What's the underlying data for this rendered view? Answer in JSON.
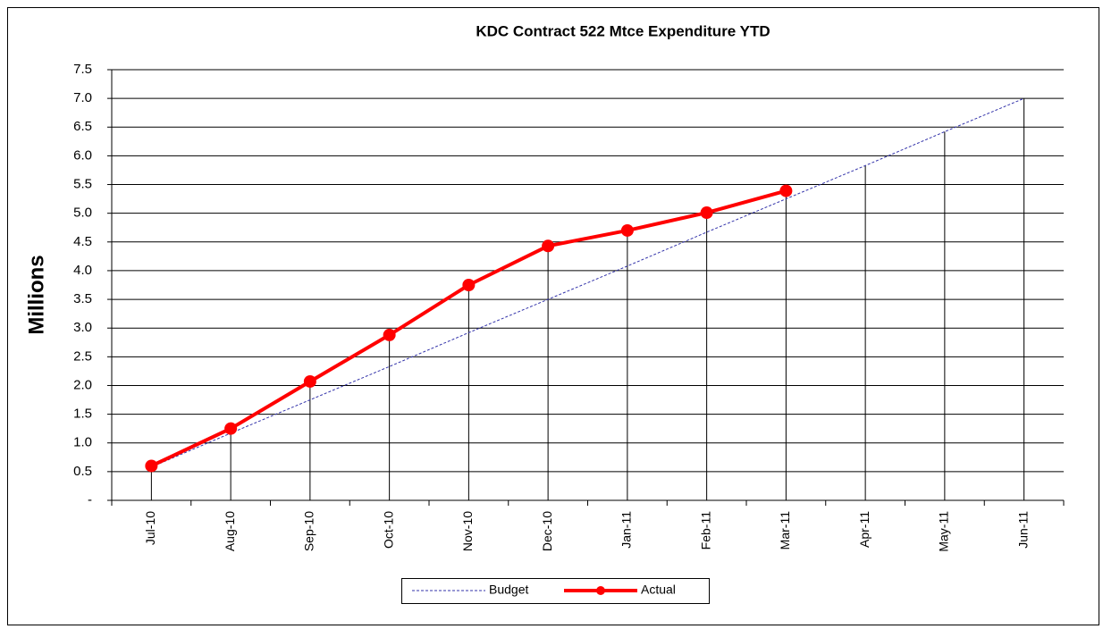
{
  "chart_data": {
    "type": "line",
    "title": "KDC Contract 522 Mtce Expenditure YTD",
    "y_label": "Millions",
    "categories": [
      "Jul-10",
      "Aug-10",
      "Sep-10",
      "Oct-10",
      "Nov-10",
      "Dec-10",
      "Jan-11",
      "Feb-11",
      "Mar-11",
      "Apr-11",
      "May-11",
      "Jun-11"
    ],
    "series": [
      {
        "name": "Budget",
        "color": "#3333aa",
        "dash": true,
        "marker": false,
        "values": [
          0.58,
          1.17,
          1.75,
          2.33,
          2.92,
          3.5,
          4.08,
          4.67,
          5.25,
          5.83,
          6.42,
          7.0
        ]
      },
      {
        "name": "Actual",
        "color": "#ff0000",
        "dash": false,
        "marker": true,
        "values": [
          0.6,
          1.25,
          2.07,
          2.88,
          3.75,
          4.43,
          4.7,
          5.01,
          5.39,
          null,
          null,
          null
        ]
      }
    ],
    "ylim": [
      0,
      7.5
    ],
    "yticks": [
      {
        "value": 0,
        "label": "-"
      },
      0.5,
      {
        "value": 1,
        "label": "1.0"
      },
      1.5,
      {
        "value": 2,
        "label": "2.0"
      },
      2.5,
      {
        "value": 3,
        "label": "3.0"
      },
      3.5,
      {
        "value": 4,
        "label": "4.0"
      },
      4.5,
      {
        "value": 5,
        "label": "5.0"
      },
      5.5,
      {
        "value": 6,
        "label": "6.0"
      },
      6.5,
      {
        "value": 7,
        "label": "7.0"
      },
      7.5
    ],
    "grid": true,
    "drop_lines": true,
    "legend": "bottom"
  }
}
